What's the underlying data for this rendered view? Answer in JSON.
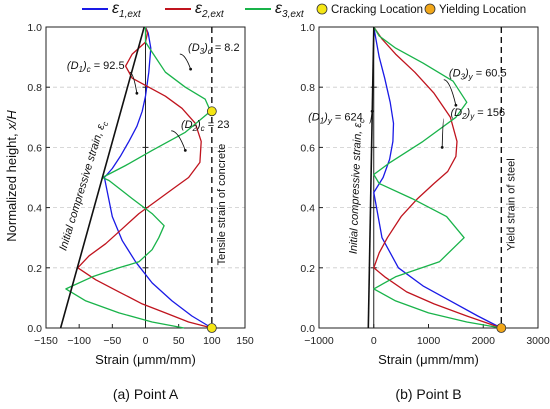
{
  "legend": {
    "items": [
      {
        "label": "ε1,ext",
        "color": "#1a1ae6",
        "kind": "line"
      },
      {
        "label": "ε2,ext",
        "color": "#c0141e",
        "kind": "line"
      },
      {
        "label": "ε3,ext",
        "color": "#19b34a",
        "kind": "line"
      },
      {
        "label": "Cracking Location",
        "color": "#f5e614",
        "kind": "dot"
      },
      {
        "label": "Yielding Location",
        "color": "#f2a719",
        "kind": "dot"
      }
    ]
  },
  "shared_ylabel": "Normalized height, x/H",
  "chart_data": [
    {
      "type": "line",
      "caption": "(a) Point A",
      "xlabel": "Strain (μmm/mm)",
      "ylabel": "Normalized height, x/H",
      "xlim": [
        -150,
        150
      ],
      "ylim": [
        0,
        1
      ],
      "xticks": [
        -150,
        -100,
        -50,
        0,
        50,
        100,
        150
      ],
      "xtick_labels": [
        "−150",
        "−100",
        "−50",
        "0",
        "50",
        "100",
        "150"
      ],
      "yticks": [
        0,
        0.2,
        0.4,
        0.6,
        0.8,
        1.0
      ],
      "ytick_labels": [
        "0.0",
        "0.2",
        "0.4",
        "0.6",
        "0.8",
        "1.0"
      ],
      "grid": "horizontal dashed",
      "series": [
        {
          "name": "ε1,ext",
          "color": "#1a1ae6",
          "x": [
            100,
            70,
            40,
            10,
            -15,
            -35,
            -50,
            -62,
            -50,
            -38,
            -25,
            -13,
            -5,
            0,
            5,
            8,
            4,
            0
          ],
          "y": [
            0.0,
            0.04,
            0.09,
            0.15,
            0.22,
            0.29,
            0.37,
            0.5,
            0.53,
            0.57,
            0.62,
            0.67,
            0.72,
            0.77,
            0.85,
            0.93,
            0.98,
            1.0
          ]
        },
        {
          "name": "ε2,ext",
          "color": "#c0141e",
          "x": [
            100,
            65,
            30,
            -5,
            -40,
            -75,
            -102,
            -85,
            -60,
            -35,
            -10,
            15,
            40,
            65,
            82,
            84,
            75,
            55,
            30,
            5,
            -20,
            -30,
            -20,
            0,
            3,
            0
          ],
          "y": [
            0.0,
            0.02,
            0.05,
            0.08,
            0.12,
            0.16,
            0.2,
            0.24,
            0.28,
            0.33,
            0.38,
            0.42,
            0.46,
            0.5,
            0.55,
            0.62,
            0.68,
            0.73,
            0.77,
            0.8,
            0.83,
            0.87,
            0.91,
            0.95,
            0.98,
            1.0
          ]
        },
        {
          "name": "ε3,ext",
          "color": "#19b34a",
          "x": [
            58,
            10,
            -40,
            -90,
            -120,
            -80,
            -40,
            -10,
            10,
            20,
            28,
            10,
            -20,
            -55,
            -65,
            -30,
            10,
            60,
            98,
            90,
            60,
            30,
            15,
            0,
            0
          ],
          "y": [
            0.0,
            0.02,
            0.05,
            0.09,
            0.13,
            0.17,
            0.2,
            0.22,
            0.26,
            0.3,
            0.34,
            0.38,
            0.43,
            0.49,
            0.5,
            0.54,
            0.59,
            0.65,
            0.72,
            0.76,
            0.8,
            0.85,
            0.9,
            0.95,
            1.0
          ]
        },
        {
          "name": "Initial compressive strain, εc",
          "color": "#111111",
          "x": [
            -128,
            -2
          ],
          "y": [
            0.0,
            1.0
          ]
        }
      ],
      "reference_line": {
        "x": 100,
        "label": "Tensile strain of concrete"
      },
      "markers": [
        {
          "kind": "cracking",
          "x": 100,
          "y": 0.72
        },
        {
          "kind": "cracking",
          "x": 100,
          "y": 0.0
        }
      ],
      "annotations": [
        {
          "text": "(D1)c = 92.5",
          "x": -75,
          "y": 0.86,
          "tx": -13,
          "ty": 0.78
        },
        {
          "text": "(D3)c = 8.2",
          "x": 103,
          "y": 0.92,
          "tx": 68,
          "ty": 0.86
        },
        {
          "text": "(D2)c = 23",
          "x": 90,
          "y": 0.665,
          "tx": 60,
          "ty": 0.59
        }
      ],
      "vertical_label": {
        "text": "Initial compressive strain, εc",
        "x": -90,
        "y": 0.47
      }
    },
    {
      "type": "line",
      "caption": "(b) Point B",
      "xlabel": "Strain (μmm/mm)",
      "ylabel": "",
      "xlim": [
        -1000,
        3000
      ],
      "ylim": [
        0,
        1
      ],
      "xticks": [
        -1000,
        0,
        1000,
        2000,
        3000
      ],
      "xtick_labels": [
        "−1000",
        "0",
        "1000",
        "2000",
        "3000"
      ],
      "yticks": [
        0,
        0.2,
        0.4,
        0.6,
        0.8,
        1.0
      ],
      "ytick_labels": [
        "0.0",
        "0.2",
        "0.4",
        "0.6",
        "0.8",
        "1.0"
      ],
      "grid": "horizontal dashed",
      "series": [
        {
          "name": "ε1,ext",
          "color": "#1a1ae6",
          "x": [
            2330,
            1900,
            1400,
            900,
            450,
            150,
            0,
            170,
            290,
            350,
            360,
            300,
            200,
            100,
            40,
            0
          ],
          "y": [
            0.0,
            0.04,
            0.09,
            0.14,
            0.2,
            0.3,
            0.45,
            0.5,
            0.56,
            0.62,
            0.68,
            0.75,
            0.83,
            0.9,
            0.96,
            1.0
          ]
        },
        {
          "name": "ε2,ext",
          "color": "#c0141e",
          "x": [
            2330,
            1700,
            1100,
            600,
            200,
            0,
            100,
            250,
            500,
            800,
            1100,
            1350,
            1500,
            1520,
            1400,
            1100,
            750,
            400,
            150,
            0
          ],
          "y": [
            0.0,
            0.04,
            0.08,
            0.12,
            0.17,
            0.2,
            0.25,
            0.3,
            0.37,
            0.43,
            0.48,
            0.52,
            0.57,
            0.62,
            0.7,
            0.78,
            0.85,
            0.91,
            0.96,
            1.0
          ]
        },
        {
          "name": "ε3,ext",
          "color": "#19b34a",
          "x": [
            2330,
            1700,
            1000,
            400,
            0,
            400,
            1200,
            1650,
            1330,
            700,
            100,
            0,
            300,
            900,
            1500,
            1700,
            1450,
            900,
            400,
            100,
            0
          ],
          "y": [
            0.0,
            0.02,
            0.05,
            0.09,
            0.13,
            0.17,
            0.22,
            0.3,
            0.37,
            0.43,
            0.48,
            0.51,
            0.55,
            0.62,
            0.7,
            0.75,
            0.82,
            0.88,
            0.93,
            0.97,
            1.0
          ]
        },
        {
          "name": "Initial compressive strain, εc",
          "color": "#111111",
          "x": [
            -100,
            0
          ],
          "y": [
            0.0,
            1.0
          ]
        }
      ],
      "reference_line": {
        "x": 2330,
        "label": "Yield strain of steel"
      },
      "markers": [
        {
          "kind": "yielding",
          "x": 2330,
          "y": 0.0
        }
      ],
      "annotations": [
        {
          "text": "(D1)y = 624",
          "x": -700,
          "y": 0.69,
          "tx": -30,
          "ty": 0.72
        },
        {
          "text": "(D3)y = 60.5",
          "x": 1900,
          "y": 0.835,
          "tx": 1500,
          "ty": 0.74
        },
        {
          "text": "(D2)y = 156",
          "x": 1900,
          "y": 0.705,
          "tx": 1250,
          "ty": 0.6
        }
      ],
      "vertical_label": {
        "text": "Initial compressive strain, εc",
        "x": -270,
        "y": 0.47
      }
    }
  ]
}
